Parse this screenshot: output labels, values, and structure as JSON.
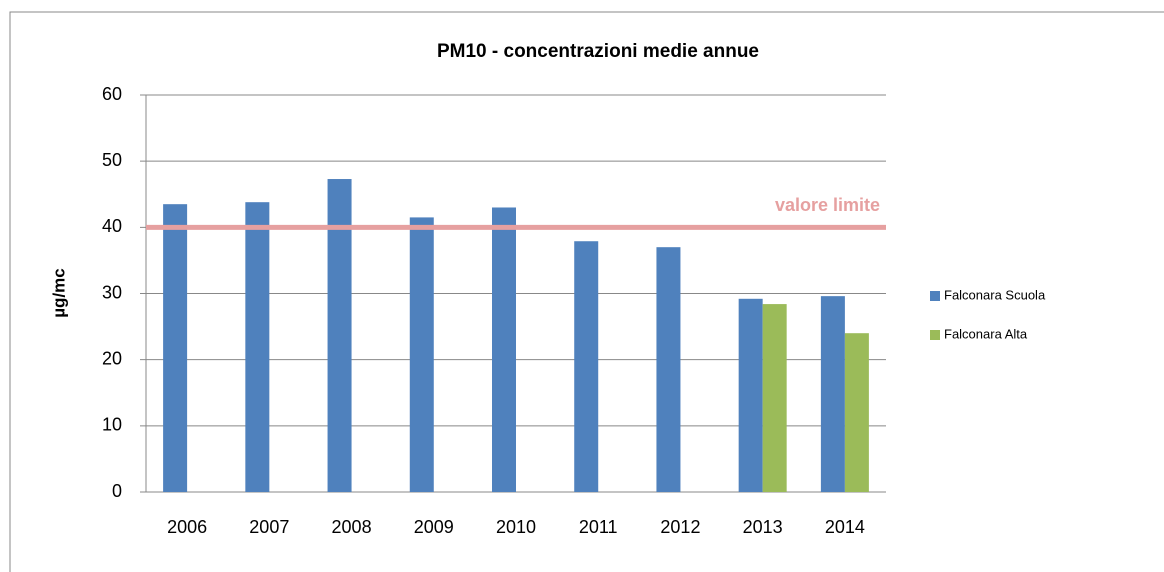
{
  "chart_data": {
    "type": "bar",
    "title": "PM10 - concentrazioni medie annue",
    "y_label": "µg/mc",
    "categories": [
      "2006",
      "2007",
      "2008",
      "2009",
      "2010",
      "2011",
      "2012",
      "2013",
      "2014"
    ],
    "series": [
      {
        "name": "Falconara Scuola",
        "color": "#4f81bd",
        "values": [
          43.5,
          43.8,
          47.3,
          41.5,
          43.0,
          37.9,
          37.0,
          29.2,
          29.6
        ]
      },
      {
        "name": "Falconara Alta",
        "color": "#9bbb59",
        "values": [
          null,
          null,
          null,
          null,
          null,
          null,
          null,
          28.4,
          24.0
        ]
      }
    ],
    "limit": {
      "label": "valore limite",
      "value": 40,
      "color": "#e6a0a0"
    },
    "ylim": [
      0,
      60
    ],
    "yticks": [
      0,
      10,
      20,
      30,
      40,
      50,
      60
    ],
    "grid": true,
    "legend": "right"
  }
}
